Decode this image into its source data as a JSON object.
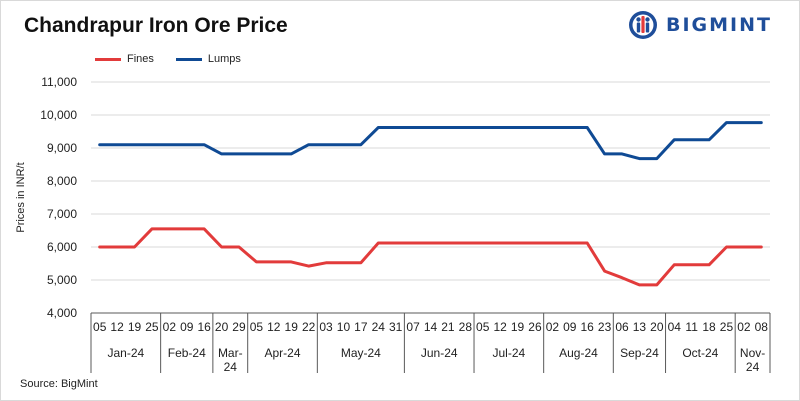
{
  "header": {
    "title": "Chandrapur Iron Ore Price",
    "logo_text": "BIGMINT"
  },
  "footer": {
    "source": "Source: BigMint"
  },
  "colors": {
    "fines": "#e23b3b",
    "lumps": "#0f4a94",
    "grid": "#d9d9d9",
    "axis": "#595959",
    "logo": "#1f4e9a"
  },
  "chart_data": {
    "type": "line",
    "title": "Chandrapur Iron Ore Price",
    "ylabel": "Prices in INR/t",
    "ylim": [
      4000,
      11000
    ],
    "yticks": [
      4000,
      5000,
      6000,
      7000,
      8000,
      9000,
      10000,
      11000
    ],
    "ytick_labels": [
      "4,000",
      "5,000",
      "6,000",
      "7,000",
      "8,000",
      "9,000",
      "10,000",
      "11,000"
    ],
    "grid": true,
    "legend_position": "top-left",
    "x": [
      "05",
      "12",
      "19",
      "25",
      "02",
      "09",
      "16",
      "20",
      "29",
      "05",
      "12",
      "19",
      "22",
      "03",
      "10",
      "17",
      "24",
      "31",
      "07",
      "14",
      "21",
      "28",
      "05",
      "12",
      "19",
      "26",
      "02",
      "09",
      "16",
      "23",
      "06",
      "13",
      "20",
      "04",
      "11",
      "18",
      "25",
      "02",
      "08"
    ],
    "month_groups": [
      {
        "label": "Jan-24",
        "count": 4
      },
      {
        "label": "Feb-24",
        "count": 3
      },
      {
        "label": "Mar-24",
        "count": 2
      },
      {
        "label": "Apr-24",
        "count": 4
      },
      {
        "label": "May-24",
        "count": 5
      },
      {
        "label": "Jun-24",
        "count": 4
      },
      {
        "label": "Jul-24",
        "count": 4
      },
      {
        "label": "Aug-24",
        "count": 4
      },
      {
        "label": "Sep-24",
        "count": 3
      },
      {
        "label": "Oct-24",
        "count": 4
      },
      {
        "label": "Nov-24",
        "count": 2
      }
    ],
    "series": [
      {
        "name": "Fines",
        "values": [
          6000,
          6000,
          6000,
          6550,
          6550,
          6550,
          6550,
          6000,
          6000,
          5550,
          5550,
          5550,
          5420,
          5520,
          5520,
          5520,
          6120,
          6120,
          6120,
          6120,
          6120,
          6120,
          6120,
          6120,
          6120,
          6120,
          6120,
          6120,
          6120,
          5270,
          5070,
          4850,
          4850,
          5460,
          5460,
          5460,
          6000,
          6000,
          6000
        ]
      },
      {
        "name": "Lumps",
        "values": [
          9100,
          9100,
          9100,
          9100,
          9100,
          9100,
          9100,
          8820,
          8820,
          8820,
          8820,
          8820,
          9100,
          9100,
          9100,
          9100,
          9620,
          9620,
          9620,
          9620,
          9620,
          9620,
          9620,
          9620,
          9620,
          9620,
          9620,
          9620,
          9620,
          8820,
          8820,
          8680,
          8680,
          9250,
          9250,
          9250,
          9770,
          9770,
          9770
        ]
      }
    ]
  }
}
